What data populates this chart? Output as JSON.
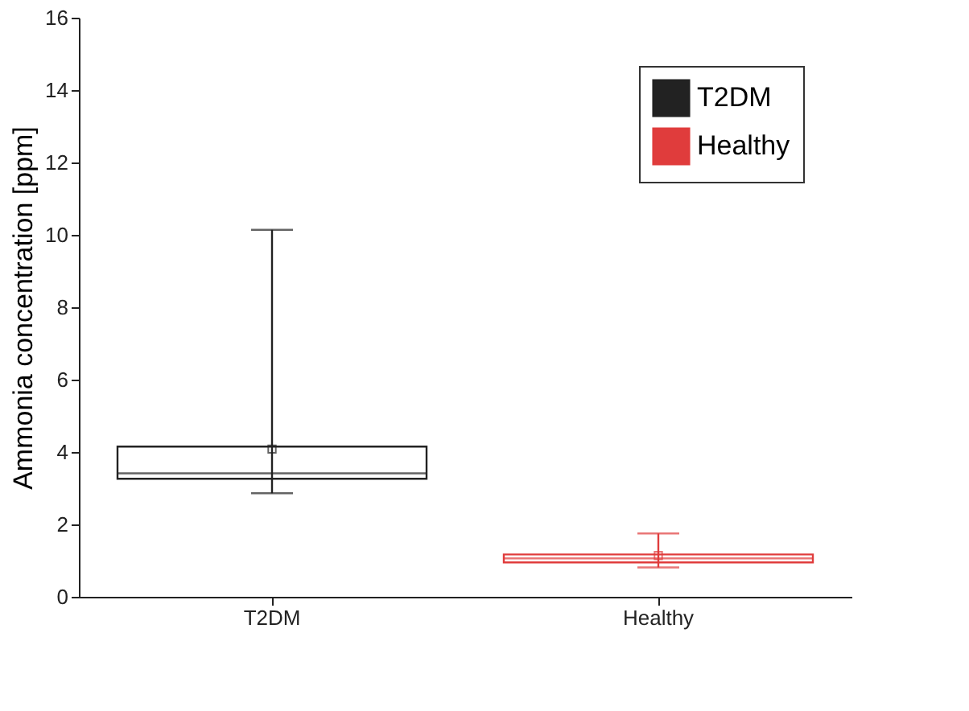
{
  "chart_data": {
    "type": "box",
    "ylabel": "Ammonia concentration [ppm]",
    "categories": [
      "T2DM",
      "Healthy"
    ],
    "series": [
      {
        "name": "T2DM",
        "color": "#222222",
        "x": [
          "T2DM"
        ],
        "boxes": [
          {
            "low": 2.86,
            "q1": 3.26,
            "median": 3.41,
            "q3": 4.15,
            "high": 10.14,
            "mean": 4.08
          }
        ]
      },
      {
        "name": "Healthy",
        "color": "#e03c3c",
        "x": [
          "Healthy"
        ],
        "boxes": [
          {
            "low": 0.81,
            "q1": 0.95,
            "median": 1.06,
            "q3": 1.17,
            "high": 1.75,
            "mean": 1.14
          }
        ]
      }
    ],
    "ylim": [
      0,
      16
    ],
    "yticks": [
      0,
      2,
      4,
      6,
      8,
      10,
      12,
      14,
      16
    ],
    "grid": false,
    "legend": "top right",
    "marker": "square"
  }
}
